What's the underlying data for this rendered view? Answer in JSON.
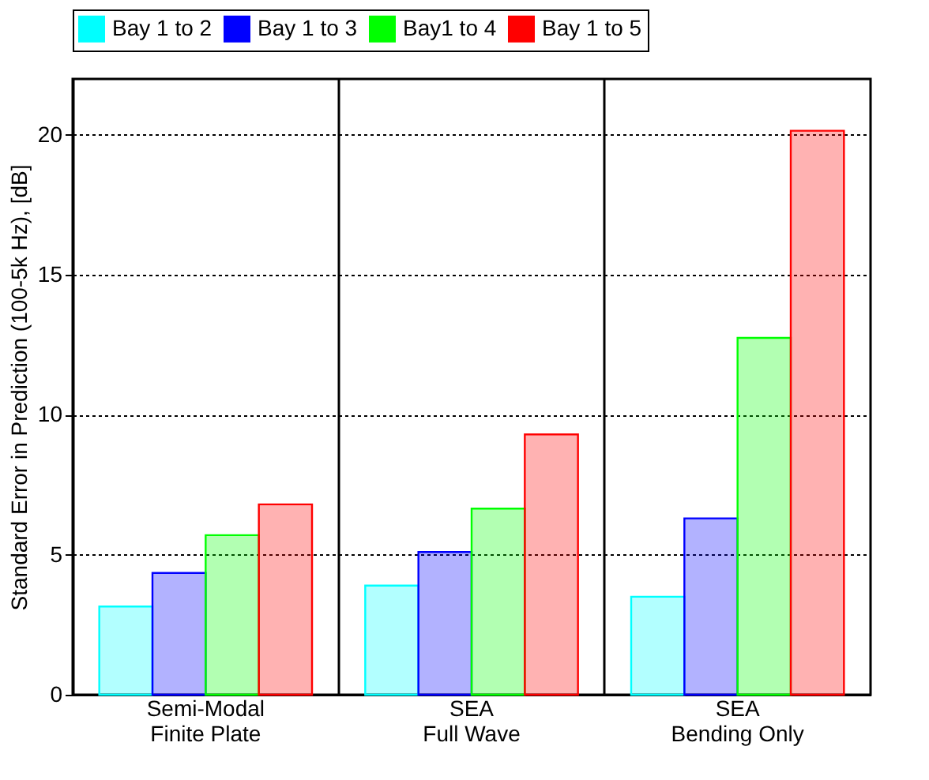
{
  "chart_data": {
    "type": "bar",
    "ylabel": "Standard Error in Prediction (100-5k Hz), [dB]",
    "categories": [
      "Semi-Modal\nFinite Plate",
      "SEA\nFull Wave",
      "SEA\nBending Only"
    ],
    "series": [
      {
        "name": "Bay 1 to 2",
        "color": "#00ffff",
        "values": [
          3.15,
          3.9,
          3.5
        ]
      },
      {
        "name": "Bay 1 to 3",
        "color": "#0000ff",
        "values": [
          4.35,
          5.1,
          6.3
        ]
      },
      {
        "name": "Bay1 to 4",
        "color": "#00ff00",
        "values": [
          5.7,
          6.65,
          12.75
        ]
      },
      {
        "name": "Bay 1 to 5",
        "color": "#ff0000",
        "values": [
          6.8,
          9.3,
          20.15
        ]
      }
    ],
    "ylim": [
      0,
      22
    ],
    "yticks": [
      0,
      5,
      10,
      15,
      20
    ],
    "grid": "y",
    "legend": "top"
  }
}
